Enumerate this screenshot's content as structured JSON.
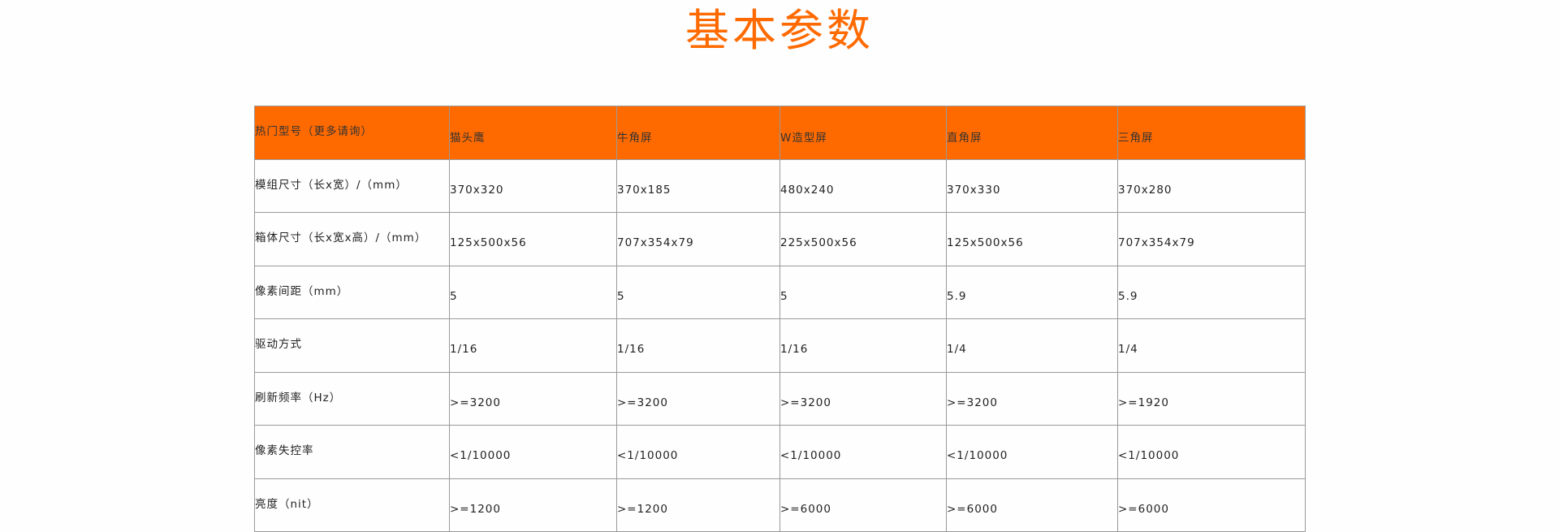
{
  "title": "基本参数",
  "colors": {
    "accent": "#ff6a00"
  },
  "table": {
    "header": [
      "热门型号（更多请询）",
      "猫头鹰",
      "牛角屏",
      "W造型屏",
      "直角屏",
      "三角屏"
    ],
    "rows": [
      [
        "模组尺寸（长x宽）/（mm）",
        "370x320",
        "370x185",
        "480x240",
        "370x330",
        "370x280"
      ],
      [
        "箱体尺寸（长x宽x高）/（mm）",
        "125x500x56",
        "707x354x79",
        "225x500x56",
        "125x500x56",
        "707x354x79"
      ],
      [
        "像素间距（mm）",
        "5",
        "5",
        "5",
        "5.9",
        "5.9"
      ],
      [
        "驱动方式",
        "1/16",
        "1/16",
        "1/16",
        "1/4",
        "1/4"
      ],
      [
        "刷新频率（Hz）",
        ">=3200",
        ">=3200",
        ">=3200",
        ">=3200",
        ">=1920"
      ],
      [
        "像素失控率",
        "<1/10000",
        "<1/10000",
        "<1/10000",
        "<1/10000",
        "<1/10000"
      ],
      [
        "亮度（nit）",
        ">=1200",
        ">=1200",
        ">=6000",
        ">=6000",
        ">=6000"
      ]
    ]
  }
}
